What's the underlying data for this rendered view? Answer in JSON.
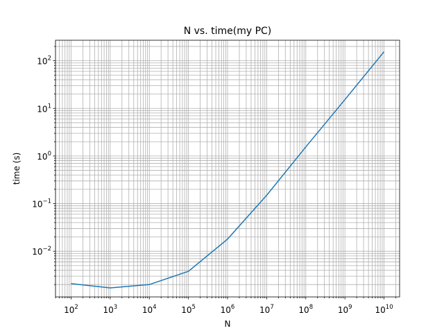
{
  "chart_data": {
    "type": "line",
    "title": "N vs. time(my PC)",
    "xlabel": "N",
    "ylabel": "time (s)",
    "xscale": "log",
    "yscale": "log",
    "grid": "both (major and minor)",
    "xlim": [
      40,
      25000000000
    ],
    "ylim": [
      0.0011,
      270
    ],
    "xticks": [
      {
        "base": "10",
        "exp": "2",
        "value": 100
      },
      {
        "base": "10",
        "exp": "3",
        "value": 1000
      },
      {
        "base": "10",
        "exp": "4",
        "value": 10000
      },
      {
        "base": "10",
        "exp": "5",
        "value": 100000
      },
      {
        "base": "10",
        "exp": "6",
        "value": 1000000
      },
      {
        "base": "10",
        "exp": "7",
        "value": 10000000
      },
      {
        "base": "10",
        "exp": "8",
        "value": 100000000
      },
      {
        "base": "10",
        "exp": "9",
        "value": 1000000000
      },
      {
        "base": "10",
        "exp": "10",
        "value": 10000000000
      }
    ],
    "yticks": [
      {
        "base": "10",
        "exp": "−2",
        "value": 0.01
      },
      {
        "base": "10",
        "exp": "−1",
        "value": 0.1
      },
      {
        "base": "10",
        "exp": "0",
        "value": 1
      },
      {
        "base": "10",
        "exp": "1",
        "value": 10
      },
      {
        "base": "10",
        "exp": "2",
        "value": 100
      }
    ],
    "series": [
      {
        "color": "#1f77b4",
        "x": [
          100,
          1000,
          10000,
          100000,
          1000000,
          10000000,
          100000000,
          1000000000,
          10000000000
        ],
        "y": [
          0.0021,
          0.0017,
          0.002,
          0.0038,
          0.018,
          0.15,
          1.55,
          15.3,
          155
        ]
      }
    ]
  }
}
